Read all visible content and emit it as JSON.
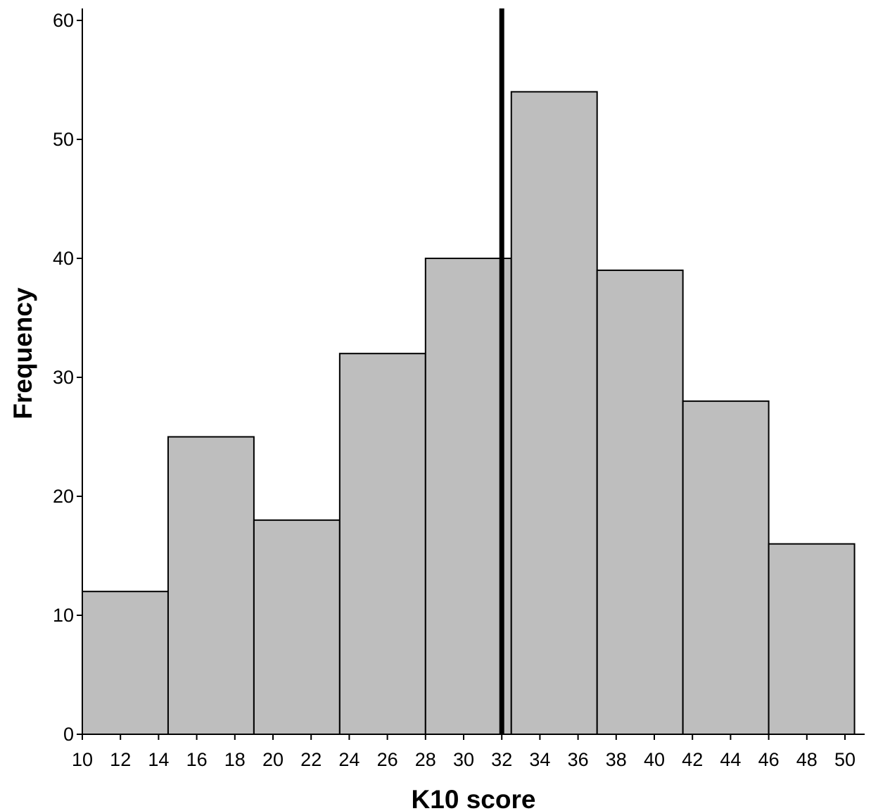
{
  "chart_data": {
    "type": "bar",
    "subtype": "histogram",
    "xlabel": "K10 score",
    "ylabel": "Frequency",
    "xlim": [
      10,
      50.8
    ],
    "ylim": [
      0,
      61
    ],
    "x_ticks": [
      10,
      12,
      14,
      16,
      18,
      20,
      22,
      24,
      26,
      28,
      30,
      32,
      34,
      36,
      38,
      40,
      42,
      44,
      46,
      48,
      50
    ],
    "y_ticks": [
      0,
      10,
      20,
      30,
      40,
      50,
      60
    ],
    "bins": [
      {
        "start": 10.0,
        "end": 14.5,
        "value": 12
      },
      {
        "start": 14.5,
        "end": 19.0,
        "value": 25
      },
      {
        "start": 19.0,
        "end": 23.5,
        "value": 18
      },
      {
        "start": 23.5,
        "end": 28.0,
        "value": 32
      },
      {
        "start": 28.0,
        "end": 32.5,
        "value": 40
      },
      {
        "start": 32.5,
        "end": 37.0,
        "value": 54
      },
      {
        "start": 37.0,
        "end": 41.5,
        "value": 39
      },
      {
        "start": 41.5,
        "end": 46.0,
        "value": 28
      },
      {
        "start": 46.0,
        "end": 50.5,
        "value": 16
      }
    ],
    "reference_line": {
      "x": 32
    },
    "grid": false,
    "colors": {
      "bar_fill": "#bebebe",
      "bar_stroke": "#000000",
      "reference_line": "#000000"
    }
  }
}
